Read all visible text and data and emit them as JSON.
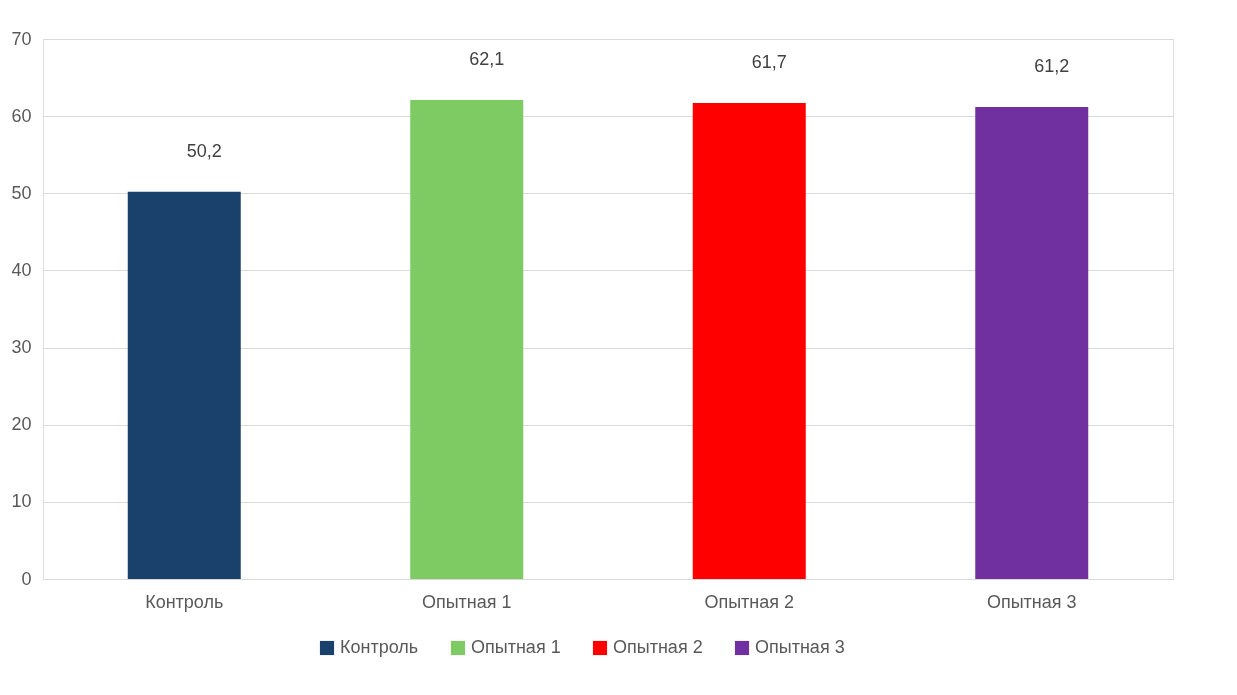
{
  "chart_data": {
    "type": "bar",
    "categories": [
      "Контроль",
      "Опытная 1",
      "Опытная 2",
      "Опытная 3"
    ],
    "series": [
      {
        "name": "Контроль",
        "color": "#1a406c",
        "values": [
          50.2,
          null,
          null,
          null
        ],
        "value_labels": [
          "50,2",
          null,
          null,
          null
        ]
      },
      {
        "name": "Опытная 1",
        "color": "#7dcb62",
        "values": [
          null,
          62.1,
          null,
          null
        ],
        "value_labels": [
          null,
          "62,1",
          null,
          null
        ]
      },
      {
        "name": "Опытная 2",
        "color": "#ff0000",
        "values": [
          null,
          null,
          61.7,
          null
        ],
        "value_labels": [
          null,
          null,
          "61,7",
          null
        ]
      },
      {
        "name": "Опытная 3",
        "color": "#7030a0",
        "values": [
          null,
          null,
          null,
          61.2
        ],
        "value_labels": [
          null,
          null,
          null,
          "61,2"
        ]
      }
    ],
    "ylim": [
      0,
      70
    ],
    "yticks": [
      0,
      10,
      20,
      30,
      40,
      50,
      60,
      70
    ],
    "grid": "y",
    "legend": "bottom"
  }
}
